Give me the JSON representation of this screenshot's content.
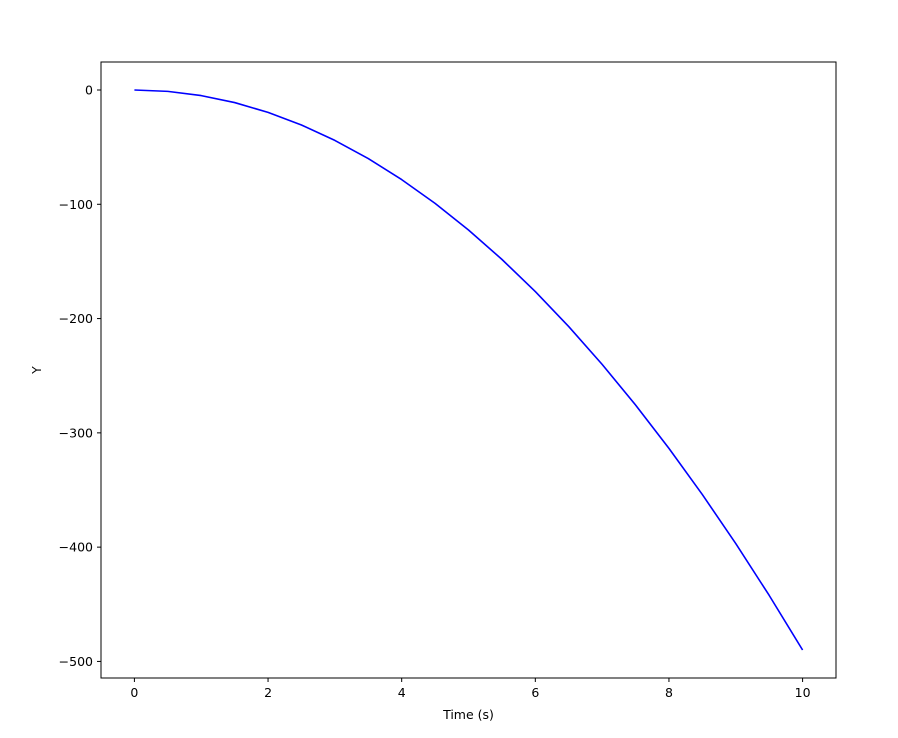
{
  "chart_data": {
    "type": "line",
    "title": "",
    "xlabel": "Time (s)",
    "ylabel": "Y",
    "xlim": [
      -0.5,
      10.5
    ],
    "ylim": [
      -514.5,
      24.5
    ],
    "xticks": [
      0,
      2,
      4,
      6,
      8,
      10
    ],
    "yticks": [
      0,
      -100,
      -200,
      -300,
      -400,
      -500
    ],
    "xtick_labels": [
      "0",
      "2",
      "4",
      "6",
      "8",
      "10"
    ],
    "ytick_labels": [
      "0",
      "−100",
      "−200",
      "−300",
      "−400",
      "−500"
    ],
    "grid": false,
    "series": [
      {
        "color": "#0000ff",
        "x": [
          0,
          0.5,
          1,
          1.5,
          2,
          2.5,
          3,
          3.5,
          4,
          4.5,
          5,
          5.5,
          6,
          6.5,
          7,
          7.5,
          8,
          8.5,
          9,
          9.5,
          10
        ],
        "y": [
          0,
          -1.2,
          -4.9,
          -11.0,
          -19.6,
          -30.6,
          -44.1,
          -60.0,
          -78.4,
          -99.2,
          -122.5,
          -148.2,
          -176.4,
          -207.0,
          -240.1,
          -275.6,
          -313.6,
          -354.0,
          -396.9,
          -442.2,
          -490.0
        ]
      }
    ]
  }
}
